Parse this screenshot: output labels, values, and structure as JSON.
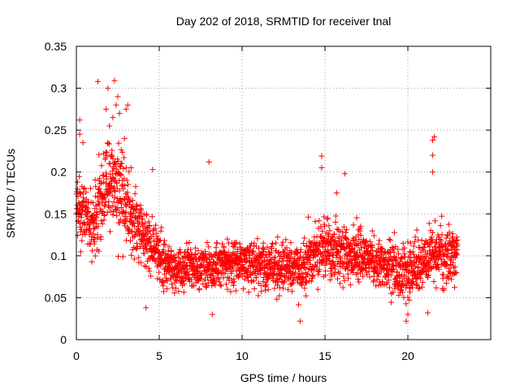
{
  "chart_data": {
    "type": "scatter",
    "title": "Day 202 of 2018, SRMTID for receiver tnal",
    "xlabel": "GPS time / hours",
    "ylabel": "SRMTID / TECUs",
    "xlim": [
      0,
      25
    ],
    "ylim": [
      0,
      0.35
    ],
    "xticks": [
      0,
      5,
      10,
      15,
      20
    ],
    "xtick_labels": [
      "0",
      "5",
      "10",
      "15",
      "20"
    ],
    "yticks": [
      0,
      0.05,
      0.1,
      0.15,
      0.2,
      0.25,
      0.3,
      0.35
    ],
    "ytick_labels": [
      "0",
      "0.05",
      "0.1",
      "0.15",
      "0.2",
      "0.25",
      "0.3",
      "0.35"
    ],
    "grid": true,
    "marker": "plus",
    "series": [
      {
        "name": "SRMTID",
        "color": "#ff0000",
        "x_range": [
          0,
          23
        ],
        "n_points": 2400,
        "trend": [
          {
            "x": 0.0,
            "mean": 0.155,
            "spread": 0.055
          },
          {
            "x": 1.0,
            "mean": 0.14,
            "spread": 0.055
          },
          {
            "x": 2.0,
            "mean": 0.185,
            "spread": 0.065
          },
          {
            "x": 2.8,
            "mean": 0.175,
            "spread": 0.065
          },
          {
            "x": 3.3,
            "mean": 0.14,
            "spread": 0.045
          },
          {
            "x": 4.5,
            "mean": 0.115,
            "spread": 0.045
          },
          {
            "x": 5.5,
            "mean": 0.085,
            "spread": 0.03
          },
          {
            "x": 10.0,
            "mean": 0.092,
            "spread": 0.035
          },
          {
            "x": 13.5,
            "mean": 0.085,
            "spread": 0.035
          },
          {
            "x": 15.0,
            "mean": 0.11,
            "spread": 0.045
          },
          {
            "x": 17.0,
            "mean": 0.1,
            "spread": 0.04
          },
          {
            "x": 20.0,
            "mean": 0.08,
            "spread": 0.04
          },
          {
            "x": 21.5,
            "mean": 0.1,
            "spread": 0.045
          },
          {
            "x": 23.0,
            "mean": 0.1,
            "spread": 0.04
          }
        ],
        "outliers": [
          {
            "x": 1.3,
            "y": 0.308
          },
          {
            "x": 2.3,
            "y": 0.309
          },
          {
            "x": 1.9,
            "y": 0.3
          },
          {
            "x": 2.5,
            "y": 0.29
          },
          {
            "x": 2.4,
            "y": 0.28
          },
          {
            "x": 3.1,
            "y": 0.28
          },
          {
            "x": 2.2,
            "y": 0.265
          },
          {
            "x": 2.0,
            "y": 0.255
          },
          {
            "x": 0.2,
            "y": 0.262
          },
          {
            "x": 3.0,
            "y": 0.275
          },
          {
            "x": 2.6,
            "y": 0.27
          },
          {
            "x": 1.8,
            "y": 0.275
          },
          {
            "x": 14.8,
            "y": 0.219
          },
          {
            "x": 14.8,
            "y": 0.205
          },
          {
            "x": 8.0,
            "y": 0.212
          },
          {
            "x": 21.6,
            "y": 0.242
          },
          {
            "x": 21.5,
            "y": 0.238
          },
          {
            "x": 21.5,
            "y": 0.22
          },
          {
            "x": 21.5,
            "y": 0.2
          },
          {
            "x": 4.6,
            "y": 0.203
          },
          {
            "x": 16.2,
            "y": 0.198
          },
          {
            "x": 15.7,
            "y": 0.175
          },
          {
            "x": 13.5,
            "y": 0.022
          },
          {
            "x": 19.9,
            "y": 0.022
          },
          {
            "x": 20.0,
            "y": 0.03
          },
          {
            "x": 8.2,
            "y": 0.03
          },
          {
            "x": 21.2,
            "y": 0.032
          },
          {
            "x": 4.2,
            "y": 0.038
          },
          {
            "x": 2.7,
            "y": 0.21
          },
          {
            "x": 0.4,
            "y": 0.235
          },
          {
            "x": 0.2,
            "y": 0.245
          },
          {
            "x": 2.9,
            "y": 0.24
          },
          {
            "x": 3.3,
            "y": 0.205
          }
        ]
      }
    ]
  }
}
